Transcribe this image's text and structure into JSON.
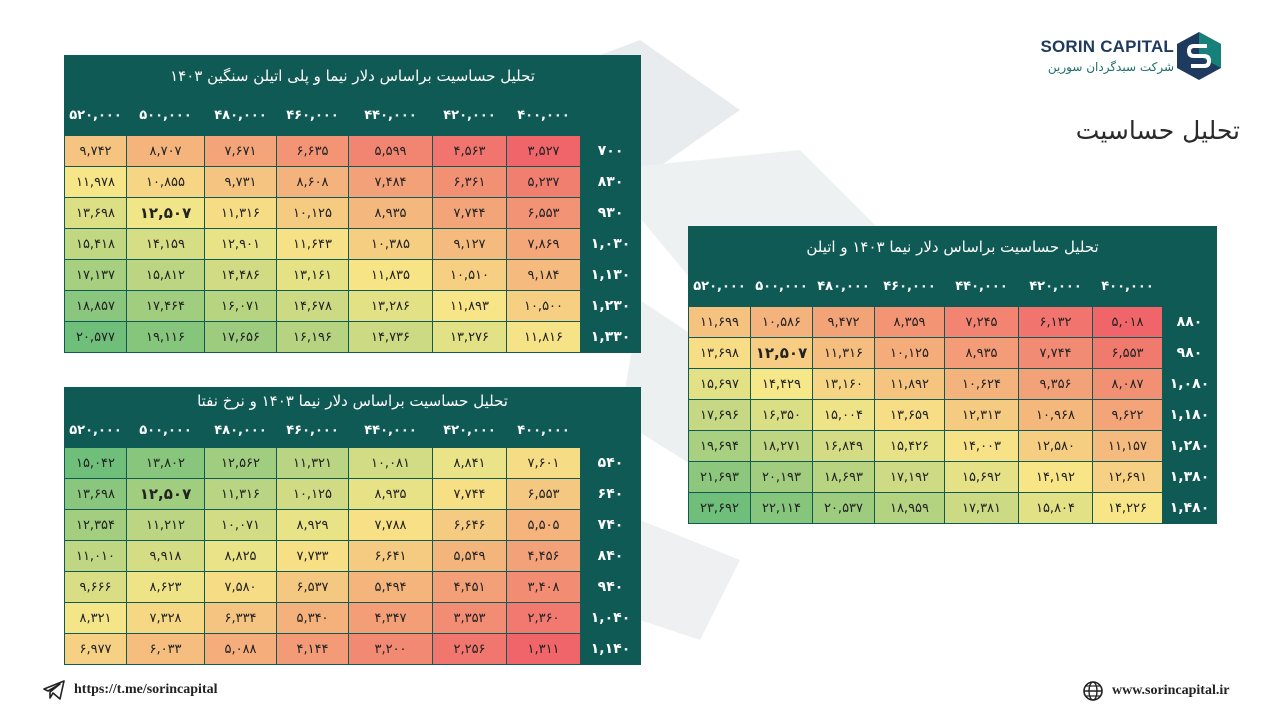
{
  "brand": {
    "name": "SORIN CAPITAL",
    "subtitle": "شرکت سبدگردان سورین"
  },
  "page_title": "تحلیل حساسیت",
  "footer": {
    "telegram_url": "https://t.me/sorincapital",
    "website": "www.sorincapital.ir"
  },
  "colors": {
    "header": "#0f5a54",
    "low": "#f0656a",
    "mid": "#f7e788",
    "high": "#6fbe7a"
  },
  "tables": [
    {
      "title": "تحلیل حساسیت براساس دلار نیما و پلی اتیلن سنگین ۱۴۰۳",
      "columns": [
        "۵۲۰,۰۰۰",
        "۵۰۰,۰۰۰",
        "۴۸۰,۰۰۰",
        "۴۶۰,۰۰۰",
        "۴۴۰,۰۰۰",
        "۴۲۰,۰۰۰",
        "۴۰۰,۰۰۰"
      ],
      "rows": [
        {
          "label": "۷۰۰",
          "values": [
            "۹,۷۴۲",
            "۸,۷۰۷",
            "۷,۶۷۱",
            "۶,۶۳۵",
            "۵,۵۹۹",
            "۴,۵۶۳",
            "۳,۵۲۷"
          ]
        },
        {
          "label": "۸۳۰",
          "values": [
            "۱۱,۹۷۸",
            "۱۰,۸۵۵",
            "۹,۷۳۱",
            "۸,۶۰۸",
            "۷,۴۸۴",
            "۶,۳۶۱",
            "۵,۲۳۷"
          ]
        },
        {
          "label": "۹۳۰",
          "values": [
            "۱۳,۶۹۸",
            "۱۲,۵۰۷",
            "۱۱,۳۱۶",
            "۱۰,۱۲۵",
            "۸,۹۳۵",
            "۷,۷۴۴",
            "۶,۵۵۳"
          ]
        },
        {
          "label": "۱,۰۳۰",
          "values": [
            "۱۵,۴۱۸",
            "۱۴,۱۵۹",
            "۱۲,۹۰۱",
            "۱۱,۶۴۳",
            "۱۰,۳۸۵",
            "۹,۱۲۷",
            "۷,۸۶۹"
          ]
        },
        {
          "label": "۱,۱۳۰",
          "values": [
            "۱۷,۱۳۷",
            "۱۵,۸۱۲",
            "۱۴,۴۸۶",
            "۱۳,۱۶۱",
            "۱۱,۸۳۵",
            "۱۰,۵۱۰",
            "۹,۱۸۴"
          ]
        },
        {
          "label": "۱,۲۳۰",
          "values": [
            "۱۸,۸۵۷",
            "۱۷,۴۶۴",
            "۱۶,۰۷۱",
            "۱۴,۶۷۸",
            "۱۳,۲۸۶",
            "۱۱,۸۹۳",
            "۱۰,۵۰۰"
          ]
        },
        {
          "label": "۱,۳۳۰",
          "values": [
            "۲۰,۵۷۷",
            "۱۹,۱۱۶",
            "۱۷,۶۵۶",
            "۱۶,۱۹۶",
            "۱۴,۷۳۶",
            "۱۳,۲۷۶",
            "۱۱,۸۱۶"
          ]
        }
      ],
      "base_value": "۱۲,۵۰۷"
    },
    {
      "title": "تحلیل حساسیت براساس دلار نیما ۱۴۰۳ و نرخ نفتا",
      "columns": [
        "۵۲۰,۰۰۰",
        "۵۰۰,۰۰۰",
        "۴۸۰,۰۰۰",
        "۴۶۰,۰۰۰",
        "۴۴۰,۰۰۰",
        "۴۲۰,۰۰۰",
        "۴۰۰,۰۰۰"
      ],
      "rows": [
        {
          "label": "۵۴۰",
          "values": [
            "۱۵,۰۴۲",
            "۱۳,۸۰۲",
            "۱۲,۵۶۲",
            "۱۱,۳۲۱",
            "۱۰,۰۸۱",
            "۸,۸۴۱",
            "۷,۶۰۱"
          ]
        },
        {
          "label": "۶۴۰",
          "values": [
            "۱۳,۶۹۸",
            "۱۲,۵۰۷",
            "۱۱,۳۱۶",
            "۱۰,۱۲۵",
            "۸,۹۳۵",
            "۷,۷۴۴",
            "۶,۵۵۳"
          ]
        },
        {
          "label": "۷۴۰",
          "values": [
            "۱۲,۳۵۴",
            "۱۱,۲۱۲",
            "۱۰,۰۷۱",
            "۸,۹۲۹",
            "۷,۷۸۸",
            "۶,۶۴۶",
            "۵,۵۰۵"
          ]
        },
        {
          "label": "۸۴۰",
          "values": [
            "۱۱,۰۱۰",
            "۹,۹۱۸",
            "۸,۸۲۵",
            "۷,۷۳۳",
            "۶,۶۴۱",
            "۵,۵۴۹",
            "۴,۴۵۶"
          ]
        },
        {
          "label": "۹۴۰",
          "values": [
            "۹,۶۶۶",
            "۸,۶۲۳",
            "۷,۵۸۰",
            "۶,۵۳۷",
            "۵,۴۹۴",
            "۴,۴۵۱",
            "۳,۴۰۸"
          ]
        },
        {
          "label": "۱,۰۴۰",
          "values": [
            "۸,۳۲۱",
            "۷,۳۲۸",
            "۶,۳۳۴",
            "۵,۳۴۰",
            "۴,۳۴۷",
            "۳,۳۵۳",
            "۲,۳۶۰"
          ]
        },
        {
          "label": "۱,۱۴۰",
          "values": [
            "۶,۹۷۷",
            "۶,۰۳۳",
            "۵,۰۸۸",
            "۴,۱۴۴",
            "۳,۲۰۰",
            "۲,۲۵۶",
            "۱,۳۱۱"
          ]
        }
      ],
      "base_value": "۱۲,۵۰۷"
    },
    {
      "title": "تحلیل حساسیت براساس دلار نیما ۱۴۰۳ و اتیلن",
      "columns": [
        "۵۲۰,۰۰۰",
        "۵۰۰,۰۰۰",
        "۴۸۰,۰۰۰",
        "۴۶۰,۰۰۰",
        "۴۴۰,۰۰۰",
        "۴۲۰,۰۰۰",
        "۴۰۰,۰۰۰"
      ],
      "rows": [
        {
          "label": "۸۸۰",
          "values": [
            "۱۱,۶۹۹",
            "۱۰,۵۸۶",
            "۹,۴۷۲",
            "۸,۳۵۹",
            "۷,۲۴۵",
            "۶,۱۳۲",
            "۵,۰۱۸"
          ]
        },
        {
          "label": "۹۸۰",
          "values": [
            "۱۳,۶۹۸",
            "۱۲,۵۰۷",
            "۱۱,۳۱۶",
            "۱۰,۱۲۵",
            "۸,۹۳۵",
            "۷,۷۴۴",
            "۶,۵۵۳"
          ]
        },
        {
          "label": "۱,۰۸۰",
          "values": [
            "۱۵,۶۹۷",
            "۱۴,۴۲۹",
            "۱۳,۱۶۰",
            "۱۱,۸۹۲",
            "۱۰,۶۲۴",
            "۹,۳۵۶",
            "۸,۰۸۷"
          ]
        },
        {
          "label": "۱,۱۸۰",
          "values": [
            "۱۷,۶۹۶",
            "۱۶,۳۵۰",
            "۱۵,۰۰۴",
            "۱۳,۶۵۹",
            "۱۲,۳۱۳",
            "۱۰,۹۶۸",
            "۹,۶۲۲"
          ]
        },
        {
          "label": "۱,۲۸۰",
          "values": [
            "۱۹,۶۹۴",
            "۱۸,۲۷۱",
            "۱۶,۸۴۹",
            "۱۵,۴۲۶",
            "۱۴,۰۰۳",
            "۱۲,۵۸۰",
            "۱۱,۱۵۷"
          ]
        },
        {
          "label": "۱,۳۸۰",
          "values": [
            "۲۱,۶۹۳",
            "۲۰,۱۹۳",
            "۱۸,۶۹۳",
            "۱۷,۱۹۲",
            "۱۵,۶۹۲",
            "۱۴,۱۹۲",
            "۱۲,۶۹۱"
          ]
        },
        {
          "label": "۱,۴۸۰",
          "values": [
            "۲۳,۶۹۲",
            "۲۲,۱۱۴",
            "۲۰,۵۳۷",
            "۱۸,۹۵۹",
            "۱۷,۳۸۱",
            "۱۵,۸۰۴",
            "۱۴,۲۲۶"
          ]
        }
      ],
      "base_value": "۱۲,۵۰۷"
    }
  ]
}
